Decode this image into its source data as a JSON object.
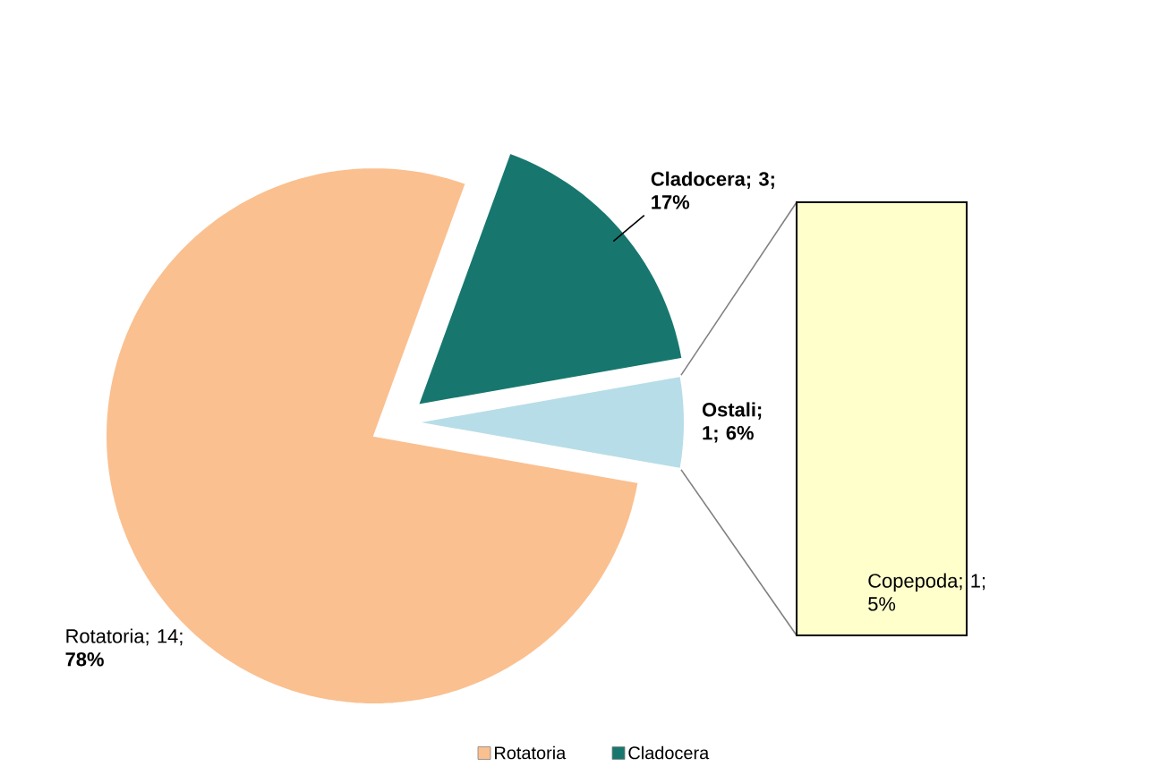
{
  "chart_data": [
    {
      "type": "pie",
      "categories": [
        "Rotatoria",
        "Cladocera",
        "Ostali"
      ],
      "values": [
        14,
        3,
        1
      ],
      "colors": [
        "#fac090",
        "#17776f",
        "#b7dde8"
      ],
      "value_labels": [
        "; 14; **78%**",
        "; 3; 17%",
        "; 1; 6%"
      ],
      "legend": "bottom"
    },
    {
      "type": "other",
      "values": [
        1
      ],
      "color": "#ffffcc",
      "value_labels": [
        "Copepoda; 1; 5%"
      ]
    }
  ]
}
